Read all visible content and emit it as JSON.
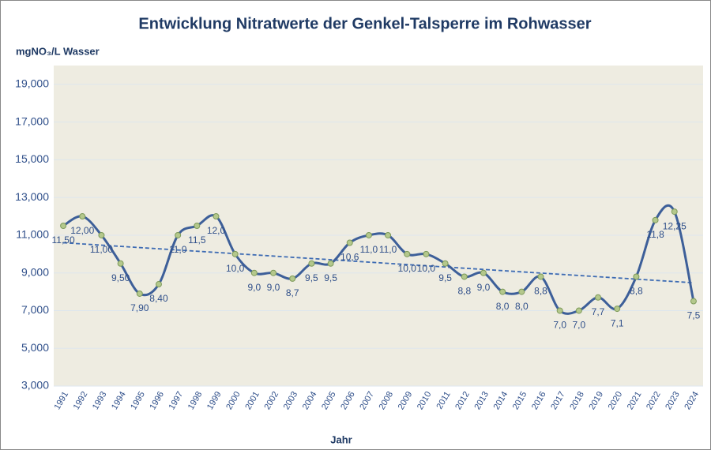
{
  "chart_data": {
    "type": "line",
    "title": "Entwicklung Nitratwerte der Genkel-Talsperre im Rohwasser",
    "y_label": "mgNO₃/L Wasser",
    "x_label": "Jahr",
    "categories": [
      "1991",
      "1992",
      "1993",
      "1994",
      "1995",
      "1996",
      "1997",
      "1998",
      "1999",
      "2000",
      "2001",
      "2002",
      "2003",
      "2004",
      "2005",
      "2006",
      "2007",
      "2008",
      "2009",
      "2010",
      "2011",
      "2012",
      "2013",
      "2014",
      "2015",
      "2016",
      "2017",
      "2018",
      "2019",
      "2020",
      "2021",
      "2022",
      "2023",
      "2024"
    ],
    "values": [
      11.5,
      12.0,
      11.0,
      9.5,
      7.9,
      8.4,
      11.0,
      11.5,
      12.0,
      10.0,
      9.0,
      9.0,
      8.7,
      9.5,
      9.5,
      10.6,
      11.0,
      11.0,
      10.0,
      10.0,
      9.5,
      8.8,
      9.0,
      8.0,
      8.0,
      8.8,
      7.0,
      7.0,
      7.7,
      7.1,
      8.8,
      11.8,
      12.25,
      7.5
    ],
    "value_labels": [
      "11,50",
      "12,00",
      "11,00",
      "9,50",
      "7,90",
      "8,40",
      "11,0",
      "11,5",
      "12,0",
      "10,0",
      "9,0",
      "9,0",
      "8,7",
      "9,5",
      "9,5",
      "10,6",
      "11,0",
      "11,0",
      "10,0",
      "10,0",
      "9,5",
      "8,8",
      "9,0",
      "8,0",
      "8,0",
      "8,8",
      "7,0",
      "7,0",
      "7,7",
      "7,1",
      "8,8",
      "11,8",
      "12,25",
      "7,5"
    ],
    "color": "#3d5f99",
    "marker_color": "#b4c88c",
    "trendline": true,
    "trendline_color": "#3d6bb3",
    "ylim": [
      3,
      20
    ],
    "yticks": [
      {
        "value": 3,
        "label": "3,000"
      },
      {
        "value": 5,
        "label": "5,000"
      },
      {
        "value": 7,
        "label": "7,000"
      },
      {
        "value": 9,
        "label": "9,000"
      },
      {
        "value": 11,
        "label": "11,000"
      },
      {
        "value": 13,
        "label": "13,000"
      },
      {
        "value": 15,
        "label": "15,000"
      },
      {
        "value": 17,
        "label": "17,000"
      },
      {
        "value": 19,
        "label": "19,000"
      }
    ],
    "grid": true
  }
}
